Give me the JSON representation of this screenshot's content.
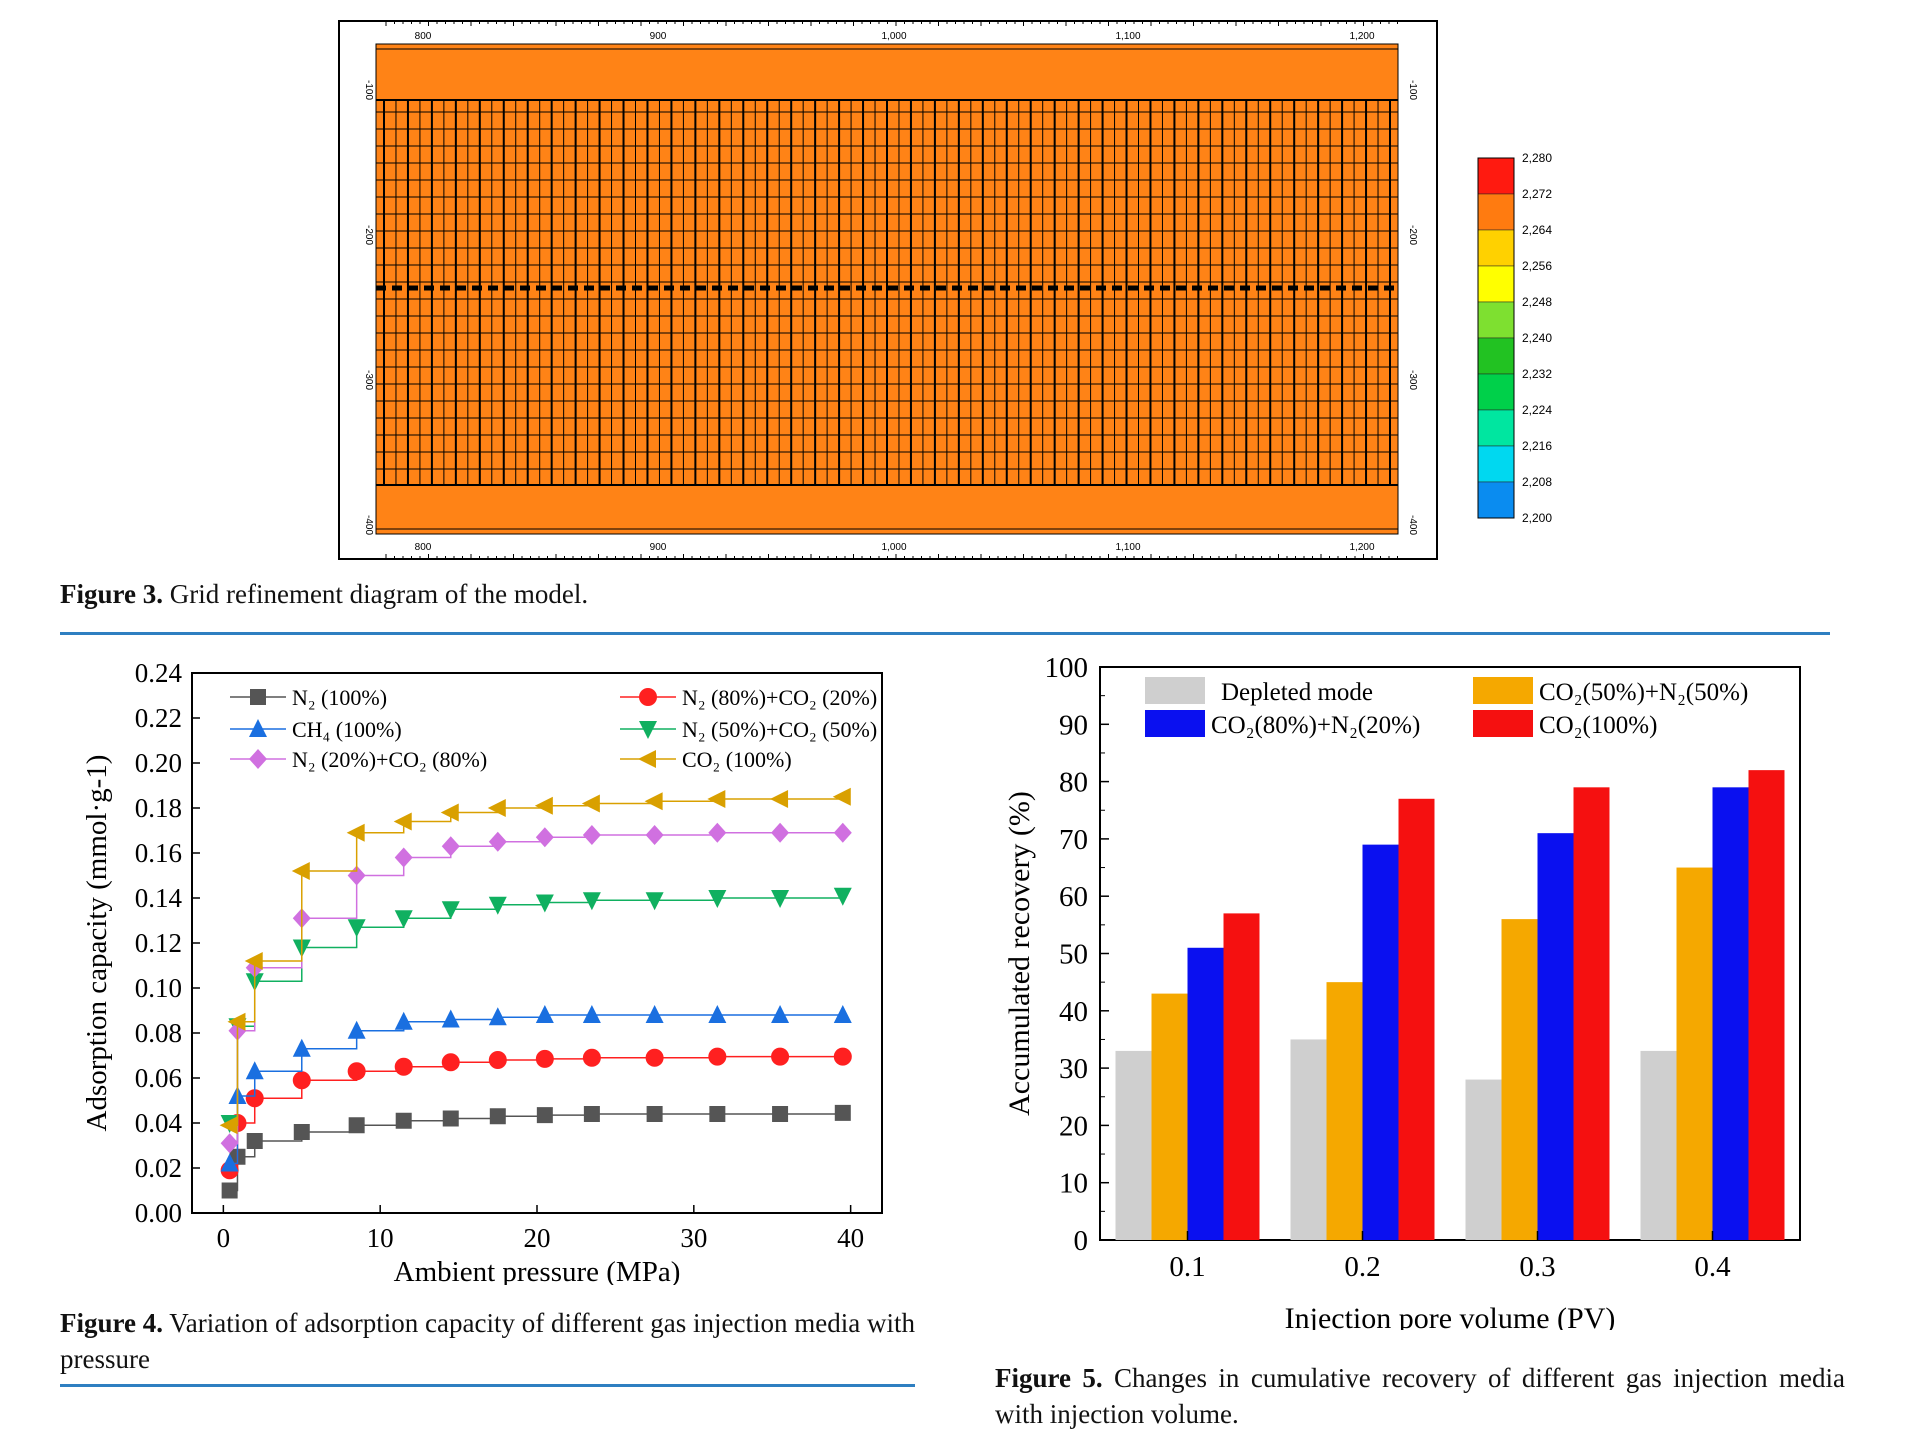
{
  "figure3": {
    "label": "Figure 3.",
    "caption": "Grid refinement diagram of the model.",
    "x_ticks": [
      "800",
      "900",
      "1,000",
      "1,100",
      "1,200"
    ],
    "y_ticks": [
      "-100",
      "-200",
      "-300",
      "-400"
    ],
    "colorbar_labels": [
      "2,280",
      "2,272",
      "2,264",
      "2,256",
      "2,248",
      "2,240",
      "2,232",
      "2,224",
      "2,216",
      "2,208",
      "2,200"
    ],
    "colorbar_colors": [
      "#ff1a10",
      "#ff7b10",
      "#ffd100",
      "#ffff00",
      "#7ee030",
      "#22c222",
      "#00d04a",
      "#00e6a0",
      "#00d8f0",
      "#0a8cf0",
      "#0018f0"
    ],
    "fill_color": "#ff8316"
  },
  "figure4": {
    "label": "Figure 4.",
    "caption": "Variation of adsorption capacity of different gas injection media with pressure"
  },
  "figure5": {
    "label": "Figure 5.",
    "caption": "Changes in cumulative recovery of different gas injection media with injection volume."
  },
  "chart_data": [
    {
      "type": "line",
      "title": "",
      "xlabel": "Ambient pressure (MPa)",
      "ylabel": "Adsorption capacity (mmol·g-1)",
      "xlim": [
        -2,
        42
      ],
      "ylim": [
        0,
        0.24
      ],
      "xticks": [
        "0",
        "10",
        "20",
        "30",
        "40"
      ],
      "yticks": [
        "0.00",
        "0.02",
        "0.04",
        "0.06",
        "0.08",
        "0.10",
        "0.12",
        "0.14",
        "0.16",
        "0.18",
        "0.20",
        "0.22",
        "0.24"
      ],
      "series": [
        {
          "name": "N₂ (100%)",
          "color": "#555555",
          "marker": "square",
          "x": [
            0.4,
            0.9,
            2,
            5,
            8.5,
            11.5,
            14.5,
            17.5,
            20.5,
            23.5,
            27.5,
            31.5,
            35.5,
            39.5
          ],
          "y": [
            0.01,
            0.025,
            0.032,
            0.036,
            0.039,
            0.041,
            0.042,
            0.043,
            0.0435,
            0.044,
            0.044,
            0.044,
            0.044,
            0.0445
          ]
        },
        {
          "name": "N₂ (80%)+CO₂ (20%)",
          "color": "#ff2020",
          "marker": "circle",
          "x": [
            0.4,
            0.9,
            2,
            5,
            8.5,
            11.5,
            14.5,
            17.5,
            20.5,
            23.5,
            27.5,
            31.5,
            35.5,
            39.5
          ],
          "y": [
            0.019,
            0.04,
            0.051,
            0.059,
            0.063,
            0.065,
            0.067,
            0.068,
            0.0685,
            0.069,
            0.069,
            0.0695,
            0.0695,
            0.0695
          ]
        },
        {
          "name": "CH₄ (100%)",
          "color": "#1a6fe0",
          "marker": "triangle-up",
          "x": [
            0.4,
            0.9,
            2,
            5,
            8.5,
            11.5,
            14.5,
            17.5,
            20.5,
            23.5,
            27.5,
            31.5,
            35.5,
            39.5
          ],
          "y": [
            0.022,
            0.052,
            0.063,
            0.073,
            0.081,
            0.085,
            0.086,
            0.087,
            0.088,
            0.088,
            0.088,
            0.088,
            0.088,
            0.088
          ]
        },
        {
          "name": "N₂ (50%)+CO₂ (50%)",
          "color": "#10b060",
          "marker": "triangle-down",
          "x": [
            0.4,
            0.9,
            2,
            5,
            8.5,
            11.5,
            14.5,
            17.5,
            20.5,
            23.5,
            27.5,
            31.5,
            35.5,
            39.5
          ],
          "y": [
            0.04,
            0.083,
            0.103,
            0.118,
            0.127,
            0.131,
            0.135,
            0.137,
            0.138,
            0.139,
            0.139,
            0.14,
            0.14,
            0.141
          ]
        },
        {
          "name": "N₂ (20%)+CO₂ (80%)",
          "color": "#d070e0",
          "marker": "diamond",
          "x": [
            0.4,
            0.9,
            2,
            5,
            8.5,
            11.5,
            14.5,
            17.5,
            20.5,
            23.5,
            27.5,
            31.5,
            35.5,
            39.5
          ],
          "y": [
            0.031,
            0.081,
            0.109,
            0.131,
            0.15,
            0.158,
            0.163,
            0.165,
            0.167,
            0.168,
            0.168,
            0.169,
            0.169,
            0.169
          ]
        },
        {
          "name": "CO₂ (100%)",
          "color": "#d9a000",
          "marker": "triangle-left",
          "x": [
            0.4,
            0.9,
            2,
            5,
            8.5,
            11.5,
            14.5,
            17.5,
            20.5,
            23.5,
            27.5,
            31.5,
            35.5,
            39.5
          ],
          "y": [
            0.039,
            0.085,
            0.112,
            0.152,
            0.169,
            0.174,
            0.178,
            0.18,
            0.181,
            0.182,
            0.183,
            0.184,
            0.184,
            0.185
          ]
        }
      ]
    },
    {
      "type": "bar",
      "title": "",
      "xlabel": "Injection pore volume (PV)",
      "ylabel": "Accumulated recovery (%)",
      "ylim": [
        0,
        100
      ],
      "yticks": [
        "0",
        "10",
        "20",
        "30",
        "40",
        "50",
        "60",
        "70",
        "80",
        "90",
        "100"
      ],
      "categories": [
        "0.1",
        "0.2",
        "0.3",
        "0.4"
      ],
      "series": [
        {
          "name": "Depleted mode",
          "color": "#cfcfcf",
          "values": [
            33,
            35,
            28,
            33
          ]
        },
        {
          "name": "CO₂(50%)+N₂(50%)",
          "color": "#f5a800",
          "values": [
            43,
            45,
            56,
            65
          ]
        },
        {
          "name": "CO₂(80%)+N₂(20%)",
          "color": "#0a10f0",
          "values": [
            51,
            69,
            71,
            79
          ]
        },
        {
          "name": "CO₂(100%)",
          "color": "#f51010",
          "values": [
            57,
            77,
            79,
            82
          ]
        }
      ]
    }
  ]
}
